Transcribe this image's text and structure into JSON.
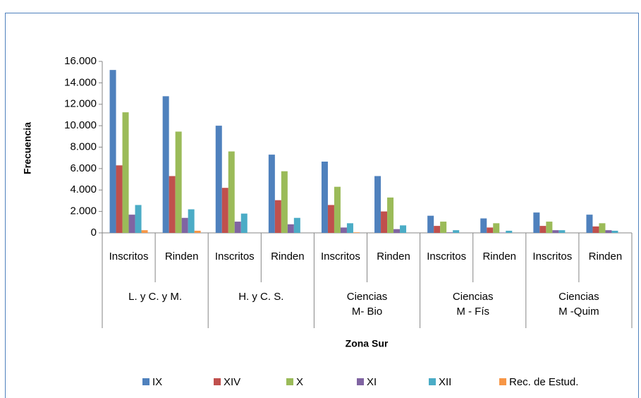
{
  "chart_data": {
    "type": "bar",
    "y_label": "Frecuencia",
    "x_label": "Zona Sur",
    "categories": [
      "Inscritos",
      "Rinden",
      "Inscritos",
      "Rinden",
      "Inscritos",
      "Rinden",
      "Inscritos",
      "Rinden",
      "Inscritos",
      "Rinden"
    ],
    "groups": [
      [
        "L. y C. y M."
      ],
      [
        "H. y C. S."
      ],
      [
        "Ciencias",
        "M- Bio"
      ],
      [
        "Ciencias",
        "M - Fís"
      ],
      [
        "Ciencias",
        "M -Quim"
      ]
    ],
    "series": [
      {
        "name": "IX",
        "color": "#4f81bd",
        "values": [
          15200,
          12750,
          10000,
          7300,
          6650,
          5300,
          1600,
          1350,
          1900,
          1700
        ]
      },
      {
        "name": "XIV",
        "color": "#c0504d",
        "values": [
          6300,
          5300,
          4200,
          3050,
          2600,
          2000,
          650,
          500,
          650,
          600
        ]
      },
      {
        "name": "X",
        "color": "#9bbb59",
        "values": [
          11250,
          9450,
          7600,
          5750,
          4300,
          3300,
          1050,
          900,
          1050,
          900
        ]
      },
      {
        "name": "XI",
        "color": "#8064a2",
        "values": [
          1700,
          1400,
          1050,
          800,
          500,
          350,
          50,
          30,
          250,
          250
        ]
      },
      {
        "name": "XII",
        "color": "#4bacc6",
        "values": [
          2600,
          2200,
          1800,
          1400,
          900,
          700,
          250,
          200,
          250,
          200
        ]
      },
      {
        "name": "Rec. de Estud.",
        "color": "#f79646",
        "values": [
          250,
          200,
          0,
          0,
          50,
          0,
          0,
          0,
          0,
          0
        ]
      }
    ],
    "ylim": [
      0,
      16000
    ],
    "yticks": [
      0,
      {
        "value": 2000,
        "label": "2.000"
      },
      {
        "value": 4000,
        "label": "4.000"
      },
      {
        "value": 6000,
        "label": "6.000"
      },
      {
        "value": 8000,
        "label": "8.000"
      },
      {
        "value": 10000,
        "label": "10.000"
      },
      {
        "value": 12000,
        "label": "12.000"
      },
      {
        "value": 14000,
        "label": "14.000"
      },
      {
        "value": 16000,
        "label": "16.000"
      }
    ],
    "legend": "bottom"
  }
}
